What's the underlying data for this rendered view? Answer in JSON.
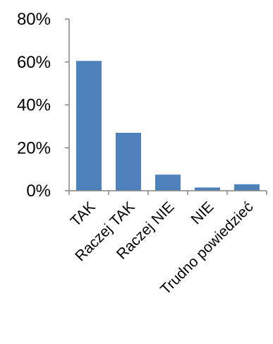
{
  "chart_data": {
    "type": "bar",
    "categories": [
      "TAK",
      "Raczej TAK",
      "Raczej NIE",
      "NIE",
      "Trudno powiedzieć"
    ],
    "series": [
      {
        "values": [
          60.5,
          27,
          7.5,
          1.5,
          3
        ]
      }
    ],
    "ylim": [
      0,
      80
    ],
    "yticks": [
      0,
      20,
      40,
      60,
      80
    ],
    "ytick_labels": [
      "0%",
      "20%",
      "40%",
      "60%",
      "80%"
    ],
    "grid": false,
    "legend": "none",
    "bar_color": "#4F81BD",
    "axis_color": "#868686"
  }
}
